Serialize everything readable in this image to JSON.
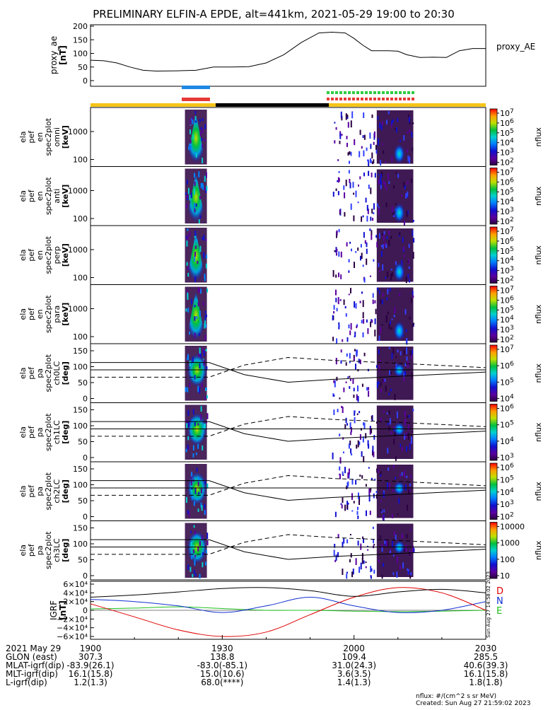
{
  "title": "PRELIMINARY ELFIN-A EPDE, alt=441km, 2021-05-29 19:00 to 20:30",
  "colors": {
    "ae_line": "#000000",
    "bar_blue": "#1e88e5",
    "bar_red": "#e53935",
    "bar_green": "#2ecc40",
    "science_yellow": "#f5c518",
    "science_black": "#000000",
    "igrf_D": "#e00000",
    "igrf_N": "#1030d0",
    "igrf_E": "#20c020"
  },
  "ae_panel": {
    "ylabel": "proxy_ae [nT]",
    "ylabel_line1": "proxy_ae",
    "ylabel_line2": "[nT]",
    "legend": "proxy_AE",
    "yticks": [
      "200",
      "150",
      "100",
      "50",
      "0"
    ]
  },
  "panels": [
    {
      "id": "omni",
      "l1": "ela",
      "l2": "pef",
      "l3": "en",
      "l4": "spec2plot",
      "l5": "omni",
      "l6": "[keV]",
      "ticks": [
        "1000",
        "100"
      ],
      "cb": {
        "label": "nflux",
        "ticks": [
          "10^7",
          "10^6",
          "10^5",
          "10^4",
          "10^3",
          "10^2"
        ]
      }
    },
    {
      "id": "anti",
      "l1": "ela",
      "l2": "pef",
      "l3": "en",
      "l4": "spec2plot",
      "l5": "anti",
      "l6": "[keV]",
      "ticks": [
        "1000",
        "100"
      ],
      "cb": {
        "label": "nflux",
        "ticks": [
          "10^7",
          "10^6",
          "10^5",
          "10^4",
          "10^3",
          "10^2"
        ]
      }
    },
    {
      "id": "perp",
      "l1": "ela",
      "l2": "pef",
      "l3": "en",
      "l4": "spec2plot",
      "l5": "perp",
      "l6": "[keV]",
      "ticks": [
        "1000",
        "100"
      ],
      "cb": {
        "label": "nflux",
        "ticks": [
          "10^7",
          "10^6",
          "10^5",
          "10^4",
          "10^3",
          "10^2"
        ]
      }
    },
    {
      "id": "para",
      "l1": "ela",
      "l2": "pef",
      "l3": "en",
      "l4": "spec2plot",
      "l5": "para",
      "l6": "[keV]",
      "ticks": [
        "1000",
        "100"
      ],
      "cb": {
        "label": "nflux",
        "ticks": [
          "10^7",
          "10^6",
          "10^5",
          "10^4",
          "10^3",
          "10^2"
        ]
      }
    },
    {
      "id": "ch0LC",
      "l1": "ela",
      "l2": "pef",
      "l3": "pa",
      "l4": "spec2plot",
      "l5": "ch0LC",
      "l6": "[deg]",
      "ticks": [
        "150",
        "100",
        "50",
        "0"
      ],
      "cb": {
        "label": "nflux",
        "ticks": [
          "10^7",
          "10^6",
          "10^5",
          "10^4"
        ]
      }
    },
    {
      "id": "ch1LC",
      "l1": "ela",
      "l2": "pef",
      "l3": "pa",
      "l4": "spec2plot",
      "l5": "ch1LC",
      "l6": "[deg]",
      "ticks": [
        "150",
        "100",
        "50",
        "0"
      ],
      "cb": {
        "label": "nflux",
        "ticks": [
          "10^6",
          "10^5",
          "10^4",
          "10^3"
        ]
      }
    },
    {
      "id": "ch2LC",
      "l1": "ela",
      "l2": "pef",
      "l3": "pa",
      "l4": "spec2plot",
      "l5": "ch2LC",
      "l6": "[deg]",
      "ticks": [
        "150",
        "100",
        "50",
        "0"
      ],
      "cb": {
        "label": "nflux",
        "ticks": [
          "10^6",
          "10^5",
          "10^4",
          "10^3",
          "10^2"
        ]
      }
    },
    {
      "id": "ch3LC",
      "l1": "ela",
      "l2": "pef",
      "l3": "pa",
      "l4": "spec2plot",
      "l5": "ch3LC",
      "l6": "[deg]",
      "ticks": [
        "150",
        "100",
        "50",
        "0"
      ],
      "cb": {
        "label": "nflux",
        "ticks": [
          "10000",
          "1000",
          "100",
          "10"
        ]
      }
    }
  ],
  "igrf_panel": {
    "ylabel_line1": "IGRF",
    "ylabel_line2": "[nT]",
    "yticks": [
      "6×10⁴",
      "4×10⁴",
      "2×10⁴",
      "0",
      "−2×10⁴",
      "−4×10⁴",
      "−6×10⁴"
    ],
    "legend": [
      "D",
      "N",
      "E"
    ],
    "side_stamp": "Sun Aug 27 14:58:02 2023"
  },
  "time_axis": {
    "rows": [
      {
        "label": "2021 May 29",
        "values": [
          "1900",
          "1930",
          "2000",
          "2030"
        ]
      },
      {
        "label": "GLON (east)",
        "values": [
          "307.3",
          "138.8",
          "109.4",
          "285.5"
        ]
      },
      {
        "label": "MLAT-igrf(dip)",
        "values": [
          "-83.9(26.1)",
          "-83.0(-85.1)",
          "31.0(24.3)",
          "40.6(39.3)"
        ]
      },
      {
        "label": "MLT-igrf(dip)",
        "values": [
          "16.1(15.8)",
          "15.0(10.6)",
          "3.6(3.5)",
          "16.1(15.8)"
        ]
      },
      {
        "label": "L-igrf(dip)",
        "values": [
          "1.2(1.3)",
          "68.0(****)",
          "1.4(1.3)",
          "1.8(1.8)"
        ]
      }
    ]
  },
  "footer": {
    "nflux_units": "nflux: #/(cm^2 s sr MeV)",
    "created": "Created: Sun Aug 27 21:59:02 2023"
  },
  "chart_data": {
    "type": "line",
    "title": "PRELIMINARY ELFIN-A EPDE, alt=441km, 2021-05-29 19:00 to 20:30",
    "x_range_utc": [
      "19:00",
      "20:30"
    ],
    "proxy_ae": {
      "x_minutes": [
        0,
        3,
        6,
        9,
        12,
        15,
        20,
        24,
        28,
        32,
        36,
        40,
        44,
        48,
        52,
        55,
        58,
        60,
        62,
        64,
        66,
        68,
        70,
        72,
        75,
        78,
        81,
        84,
        87,
        90
      ],
      "values": [
        75,
        73,
        65,
        50,
        38,
        35,
        36,
        38,
        50,
        50,
        51,
        65,
        95,
        140,
        175,
        178,
        175,
        155,
        130,
        110,
        110,
        110,
        108,
        95,
        85,
        86,
        85,
        110,
        118,
        118
      ],
      "ylim": [
        0,
        200
      ]
    },
    "pitch_angle_lines": {
      "x_minutes": [
        0,
        27,
        35,
        45,
        55,
        65,
        90
      ],
      "lc_deg": [
        113,
        113,
        75,
        51,
        60,
        66,
        83
      ],
      "antilc_deg": [
        67,
        67,
        105,
        129,
        120,
        114,
        97
      ]
    },
    "igrf": {
      "x_minutes": [
        0,
        10,
        20,
        30,
        40,
        50,
        60,
        70,
        80,
        90
      ],
      "D_nT": [
        15000,
        -15000,
        -45000,
        -60000,
        -50000,
        -10000,
        30000,
        52000,
        40000,
        0
      ],
      "N_nT": [
        25000,
        20000,
        10000,
        -5000,
        10000,
        30000,
        10000,
        -5000,
        0,
        20000
      ],
      "E_nT": [
        3000,
        5000,
        8000,
        4000,
        0,
        0,
        -2000,
        -3000,
        -2000,
        0
      ],
      "ylim": [
        -60000,
        60000
      ]
    }
  }
}
